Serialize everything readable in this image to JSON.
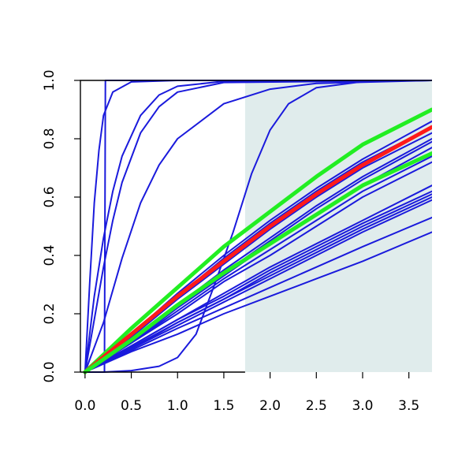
{
  "chart_data": {
    "type": "line",
    "title": "",
    "xlabel": "",
    "ylabel": "",
    "xlim": [
      -0.05,
      3.75
    ],
    "ylim": [
      0.0,
      1.0
    ],
    "x_ticks": [
      "0.0",
      "0.5",
      "1.0",
      "1.5",
      "2.0",
      "2.5",
      "3.0",
      "3.5"
    ],
    "y_ticks": [
      "0.0",
      "0.2",
      "0.4",
      "0.6",
      "0.8",
      "1.0"
    ],
    "grid": false,
    "legend": "none",
    "shaded_region": {
      "x_from": 1.73,
      "x_to": 3.75,
      "color": "#e0ecec"
    },
    "colors": {
      "blue": "#1a1adc",
      "red": "#ff1a1a",
      "green": "#22ee22",
      "axis": "#000000"
    },
    "series": [
      {
        "color": "blue",
        "values": [
          [
            0,
            0
          ],
          [
            0.05,
            0.3
          ],
          [
            0.1,
            0.58
          ],
          [
            0.15,
            0.76
          ],
          [
            0.2,
            0.88
          ],
          [
            0.3,
            0.96
          ],
          [
            0.5,
            0.995
          ],
          [
            1.0,
            1.0
          ],
          [
            3.75,
            1.0
          ]
        ]
      },
      {
        "color": "blue",
        "values": [
          [
            0,
            0
          ],
          [
            0.1,
            0.26
          ],
          [
            0.2,
            0.46
          ],
          [
            0.3,
            0.62
          ],
          [
            0.4,
            0.74
          ],
          [
            0.6,
            0.88
          ],
          [
            0.8,
            0.95
          ],
          [
            1.0,
            0.98
          ],
          [
            1.5,
            0.997
          ],
          [
            3.75,
            1.0
          ]
        ]
      },
      {
        "color": "blue",
        "values": [
          [
            0,
            0
          ],
          [
            0.1,
            0.18
          ],
          [
            0.2,
            0.36
          ],
          [
            0.3,
            0.52
          ],
          [
            0.4,
            0.65
          ],
          [
            0.6,
            0.82
          ],
          [
            0.8,
            0.91
          ],
          [
            1.0,
            0.96
          ],
          [
            1.5,
            0.993
          ],
          [
            3.75,
            1.0
          ]
        ]
      },
      {
        "color": "blue",
        "values": [
          [
            0,
            0
          ],
          [
            0.2,
            0.17
          ],
          [
            0.4,
            0.39
          ],
          [
            0.6,
            0.58
          ],
          [
            0.8,
            0.71
          ],
          [
            1.0,
            0.8
          ],
          [
            1.5,
            0.92
          ],
          [
            2.0,
            0.97
          ],
          [
            2.5,
            0.99
          ],
          [
            3.75,
            1.0
          ]
        ]
      },
      {
        "color": "blue",
        "values": [
          [
            0,
            0
          ],
          [
            0.2,
            0.0
          ],
          [
            0.21,
            0.0
          ],
          [
            0.22,
            1.0
          ],
          [
            3.75,
            1.0
          ]
        ]
      },
      {
        "color": "blue",
        "values": [
          [
            0,
            0
          ],
          [
            0.2,
            0.0
          ],
          [
            0.5,
            0.005
          ],
          [
            0.8,
            0.02
          ],
          [
            1.0,
            0.05
          ],
          [
            1.2,
            0.13
          ],
          [
            1.4,
            0.3
          ],
          [
            1.6,
            0.48
          ],
          [
            1.8,
            0.68
          ],
          [
            2.0,
            0.83
          ],
          [
            2.2,
            0.92
          ],
          [
            2.5,
            0.975
          ],
          [
            3.0,
            0.996
          ],
          [
            3.75,
            1.0
          ]
        ]
      },
      {
        "color": "blue",
        "values": [
          [
            0,
            0
          ],
          [
            0.5,
            0.13
          ],
          [
            1.0,
            0.27
          ],
          [
            1.5,
            0.4
          ],
          [
            2.0,
            0.52
          ],
          [
            2.5,
            0.63
          ],
          [
            3.0,
            0.73
          ],
          [
            3.75,
            0.86
          ]
        ]
      },
      {
        "color": "blue",
        "values": [
          [
            0,
            0
          ],
          [
            0.5,
            0.12
          ],
          [
            1.0,
            0.26
          ],
          [
            1.5,
            0.39
          ],
          [
            2.0,
            0.51
          ],
          [
            2.5,
            0.62
          ],
          [
            3.0,
            0.72
          ],
          [
            3.75,
            0.84
          ]
        ]
      },
      {
        "color": "blue",
        "values": [
          [
            0,
            0
          ],
          [
            0.5,
            0.12
          ],
          [
            1.0,
            0.25
          ],
          [
            1.5,
            0.37
          ],
          [
            2.0,
            0.49
          ],
          [
            2.5,
            0.6
          ],
          [
            3.0,
            0.7
          ],
          [
            3.75,
            0.82
          ]
        ]
      },
      {
        "color": "blue",
        "values": [
          [
            0,
            0
          ],
          [
            0.5,
            0.11
          ],
          [
            1.0,
            0.23
          ],
          [
            1.5,
            0.35
          ],
          [
            2.0,
            0.46
          ],
          [
            2.5,
            0.57
          ],
          [
            3.0,
            0.67
          ],
          [
            3.75,
            0.8
          ]
        ]
      },
      {
        "color": "blue",
        "values": [
          [
            0,
            0
          ],
          [
            0.5,
            0.11
          ],
          [
            1.0,
            0.23
          ],
          [
            1.5,
            0.34
          ],
          [
            2.0,
            0.45
          ],
          [
            2.5,
            0.56
          ],
          [
            3.0,
            0.66
          ],
          [
            3.75,
            0.79
          ]
        ]
      },
      {
        "color": "blue",
        "values": [
          [
            0,
            0
          ],
          [
            0.5,
            0.1
          ],
          [
            1.0,
            0.22
          ],
          [
            1.5,
            0.33
          ],
          [
            2.0,
            0.44
          ],
          [
            2.5,
            0.54
          ],
          [
            3.0,
            0.64
          ],
          [
            3.75,
            0.77
          ]
        ]
      },
      {
        "color": "blue",
        "values": [
          [
            0,
            0
          ],
          [
            0.5,
            0.1
          ],
          [
            1.0,
            0.21
          ],
          [
            1.5,
            0.32
          ],
          [
            2.0,
            0.42
          ],
          [
            2.5,
            0.52
          ],
          [
            3.0,
            0.62
          ],
          [
            3.75,
            0.74
          ]
        ]
      },
      {
        "color": "blue",
        "values": [
          [
            0,
            0
          ],
          [
            0.5,
            0.1
          ],
          [
            1.0,
            0.2
          ],
          [
            1.5,
            0.31
          ],
          [
            2.0,
            0.4
          ],
          [
            2.5,
            0.5
          ],
          [
            3.0,
            0.6
          ],
          [
            3.75,
            0.72
          ]
        ]
      },
      {
        "color": "blue",
        "values": [
          [
            0,
            0
          ],
          [
            0.5,
            0.09
          ],
          [
            1.0,
            0.18
          ],
          [
            1.5,
            0.27
          ],
          [
            2.0,
            0.36
          ],
          [
            2.5,
            0.44
          ],
          [
            3.0,
            0.52
          ],
          [
            3.75,
            0.64
          ]
        ]
      },
      {
        "color": "blue",
        "values": [
          [
            0,
            0
          ],
          [
            0.5,
            0.09
          ],
          [
            1.0,
            0.18
          ],
          [
            1.5,
            0.26
          ],
          [
            2.0,
            0.35
          ],
          [
            2.5,
            0.43
          ],
          [
            3.0,
            0.51
          ],
          [
            3.75,
            0.62
          ]
        ]
      },
      {
        "color": "blue",
        "values": [
          [
            0,
            0
          ],
          [
            0.5,
            0.085
          ],
          [
            1.0,
            0.17
          ],
          [
            1.5,
            0.25
          ],
          [
            2.0,
            0.34
          ],
          [
            2.5,
            0.42
          ],
          [
            3.0,
            0.5
          ],
          [
            3.75,
            0.61
          ]
        ]
      },
      {
        "color": "blue",
        "values": [
          [
            0,
            0
          ],
          [
            0.5,
            0.08
          ],
          [
            1.0,
            0.17
          ],
          [
            1.5,
            0.25
          ],
          [
            2.0,
            0.33
          ],
          [
            2.5,
            0.41
          ],
          [
            3.0,
            0.49
          ],
          [
            3.75,
            0.6
          ]
        ]
      },
      {
        "color": "blue",
        "values": [
          [
            0,
            0
          ],
          [
            0.5,
            0.08
          ],
          [
            1.0,
            0.16
          ],
          [
            1.5,
            0.24
          ],
          [
            2.0,
            0.32
          ],
          [
            2.5,
            0.4
          ],
          [
            3.0,
            0.48
          ],
          [
            3.75,
            0.59
          ]
        ]
      },
      {
        "color": "blue",
        "values": [
          [
            0,
            0
          ],
          [
            0.5,
            0.075
          ],
          [
            1.0,
            0.15
          ],
          [
            1.5,
            0.22
          ],
          [
            2.0,
            0.29
          ],
          [
            2.5,
            0.36
          ],
          [
            3.0,
            0.43
          ],
          [
            3.75,
            0.53
          ]
        ]
      },
      {
        "color": "blue",
        "values": [
          [
            0,
            0
          ],
          [
            0.5,
            0.07
          ],
          [
            1.0,
            0.13
          ],
          [
            1.5,
            0.2
          ],
          [
            2.0,
            0.26
          ],
          [
            2.5,
            0.32
          ],
          [
            3.0,
            0.38
          ],
          [
            3.75,
            0.48
          ]
        ]
      },
      {
        "color": "green",
        "values": [
          [
            0,
            0
          ],
          [
            0.5,
            0.15
          ],
          [
            1.0,
            0.29
          ],
          [
            1.5,
            0.43
          ],
          [
            2.0,
            0.55
          ],
          [
            2.5,
            0.67
          ],
          [
            3.0,
            0.78
          ],
          [
            3.75,
            0.9
          ]
        ]
      },
      {
        "color": "red",
        "values": [
          [
            0,
            0
          ],
          [
            0.5,
            0.13
          ],
          [
            1.0,
            0.26
          ],
          [
            1.5,
            0.38
          ],
          [
            2.0,
            0.5
          ],
          [
            2.5,
            0.61
          ],
          [
            3.0,
            0.71
          ],
          [
            3.75,
            0.84
          ]
        ]
      },
      {
        "color": "green",
        "values": [
          [
            0,
            0
          ],
          [
            0.5,
            0.11
          ],
          [
            1.0,
            0.23
          ],
          [
            1.5,
            0.34
          ],
          [
            2.0,
            0.44
          ],
          [
            2.5,
            0.54
          ],
          [
            3.0,
            0.64
          ],
          [
            3.75,
            0.75
          ]
        ]
      }
    ]
  }
}
